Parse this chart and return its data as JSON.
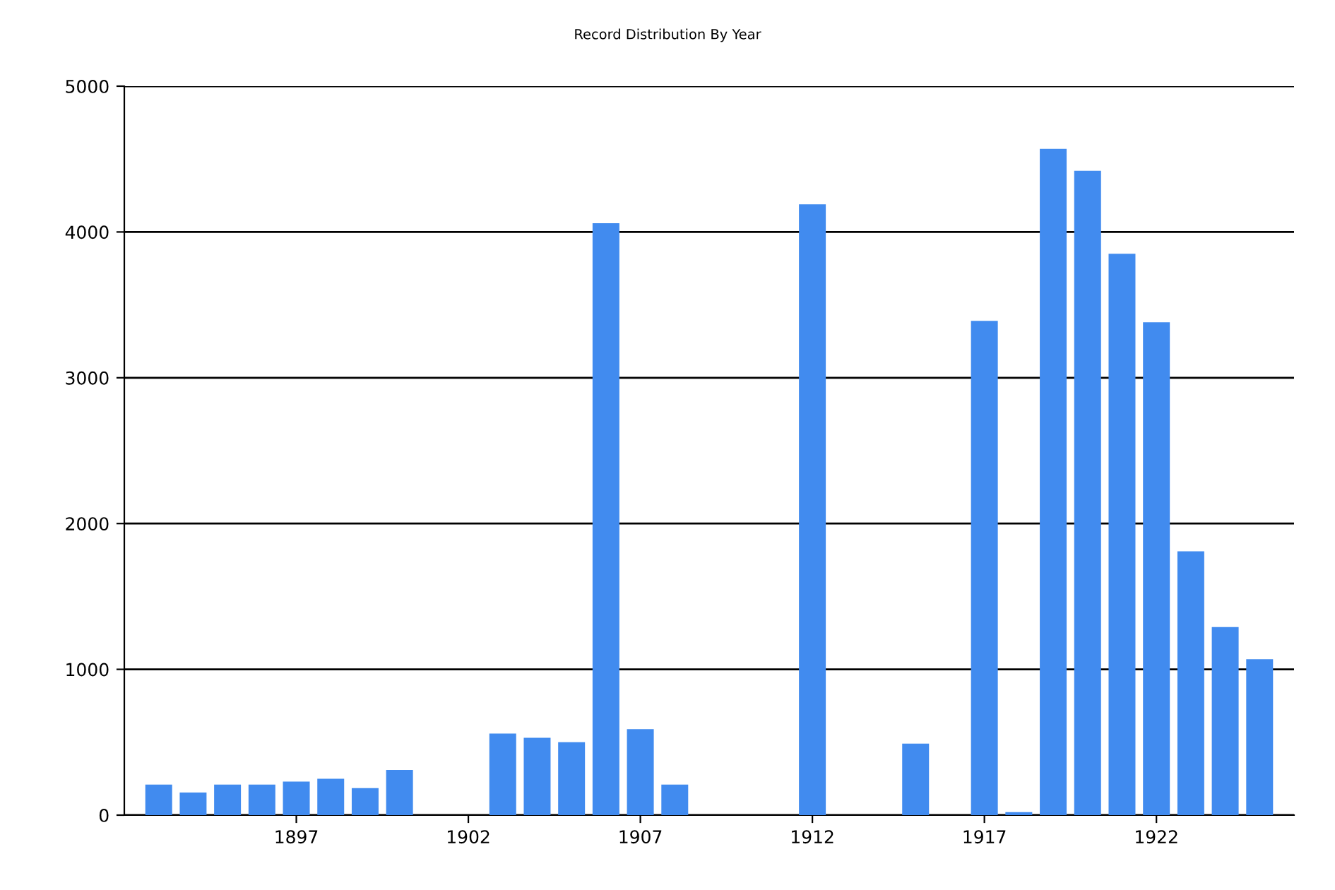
{
  "chart_data": {
    "type": "bar",
    "title": "Record Distribution By Year",
    "x": [
      1893,
      1894,
      1895,
      1896,
      1897,
      1898,
      1899,
      1900,
      1901,
      1902,
      1903,
      1904,
      1905,
      1906,
      1907,
      1908,
      1909,
      1910,
      1911,
      1912,
      1913,
      1914,
      1915,
      1916,
      1917,
      1918,
      1919,
      1920,
      1921,
      1922,
      1923,
      1924,
      1925
    ],
    "values": [
      210,
      155,
      210,
      210,
      230,
      250,
      185,
      310,
      null,
      null,
      560,
      530,
      500,
      4060,
      590,
      210,
      null,
      null,
      null,
      4190,
      null,
      null,
      490,
      null,
      3390,
      20,
      4570,
      4420,
      3850,
      3380,
      1810,
      1290,
      1070
    ],
    "color": "#418bef",
    "xlim": [
      1892,
      1926
    ],
    "xticks": [
      1897,
      1902,
      1907,
      1912,
      1917,
      1922
    ],
    "ylim": [
      0,
      5000
    ],
    "yticks": [
      0,
      1000,
      2000,
      3000,
      4000,
      5000
    ],
    "grid": "y",
    "legend": false
  }
}
